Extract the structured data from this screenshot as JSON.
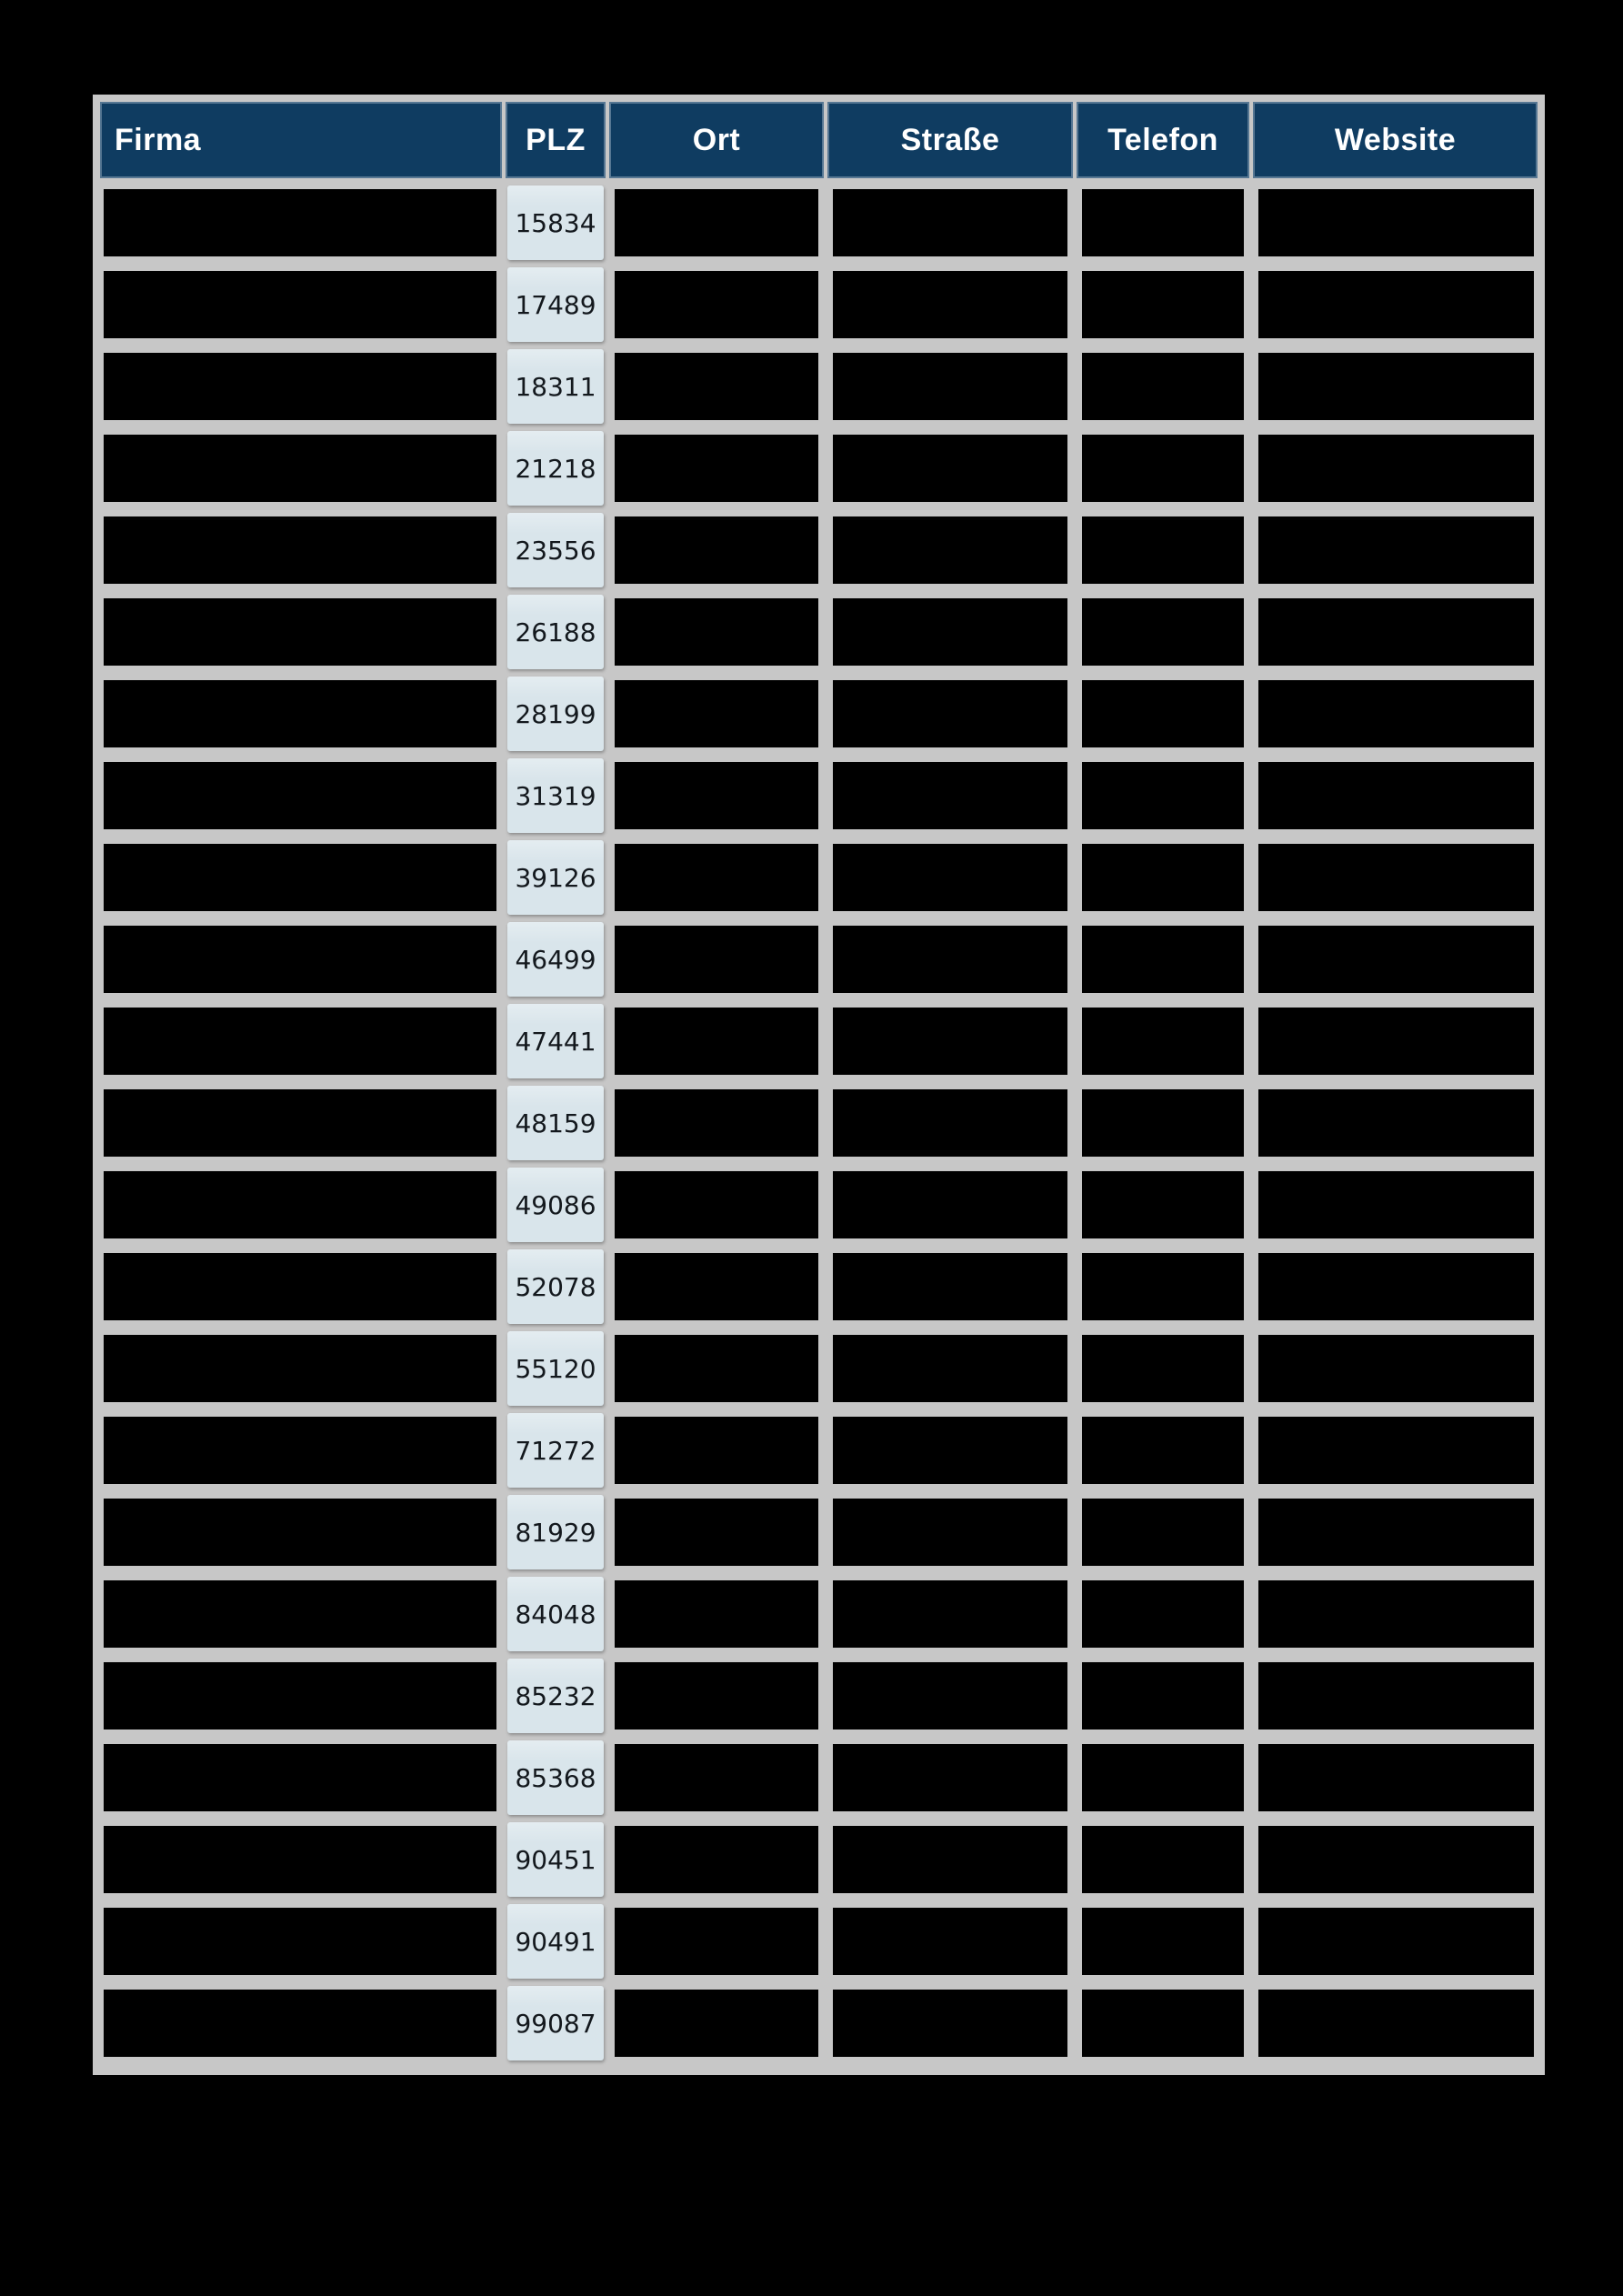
{
  "page": {
    "background_color": "#000000"
  },
  "table": {
    "name": "firmen-verzeichnis",
    "columns": [
      {
        "key": "firma",
        "label": "Firma"
      },
      {
        "key": "plz",
        "label": "PLZ"
      },
      {
        "key": "ort",
        "label": "Ort"
      },
      {
        "key": "strasse",
        "label": "Straße"
      },
      {
        "key": "telefon",
        "label": "Telefon"
      },
      {
        "key": "website",
        "label": "Website"
      }
    ],
    "redacted_columns": [
      "firma",
      "ort",
      "strasse",
      "telefon",
      "website"
    ],
    "rows": [
      {
        "plz": "15834"
      },
      {
        "plz": "17489"
      },
      {
        "plz": "18311"
      },
      {
        "plz": "21218"
      },
      {
        "plz": "23556"
      },
      {
        "plz": "26188"
      },
      {
        "plz": "28199"
      },
      {
        "plz": "31319"
      },
      {
        "plz": "39126"
      },
      {
        "plz": "46499"
      },
      {
        "plz": "47441"
      },
      {
        "plz": "48159"
      },
      {
        "plz": "49086"
      },
      {
        "plz": "52078"
      },
      {
        "plz": "55120"
      },
      {
        "plz": "71272"
      },
      {
        "plz": "81929"
      },
      {
        "plz": "84048"
      },
      {
        "plz": "85232"
      },
      {
        "plz": "85368"
      },
      {
        "plz": "90451"
      },
      {
        "plz": "90491"
      },
      {
        "plz": "99087"
      }
    ],
    "colors": {
      "header_bg": "#0F3C61",
      "header_text": "#FFFFFF",
      "grid_bg": "#C7C7C7",
      "plz_cell_bg": "#D9E5EB",
      "plz_text": "#13181D",
      "redacted_cell_bg": "#000000"
    }
  }
}
